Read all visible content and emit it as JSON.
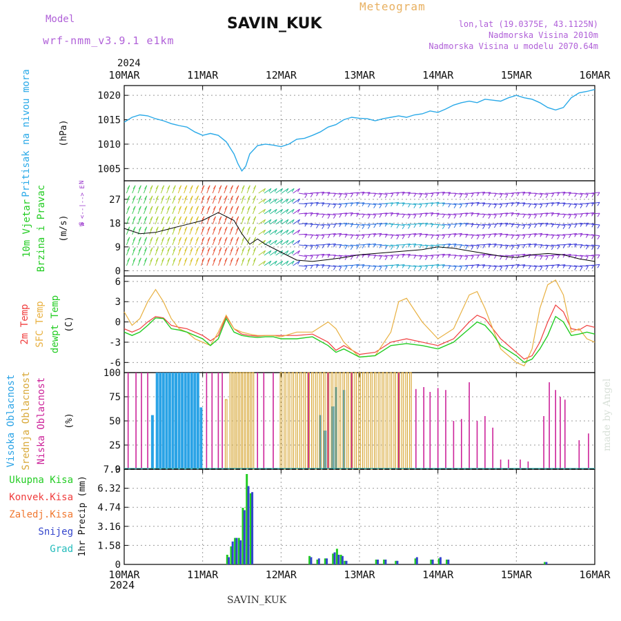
{
  "header": {
    "model_label": "Model",
    "model_name": "wrf-nmm_v3.9.1 e1km",
    "station": "SAVIN_KUK",
    "product": "Meteogram",
    "lonlat": "lon,lat (19.0375E, 43.1125N)",
    "elevation": "Nadmorska Visina 2010m",
    "model_elevation": "Nadmorska Visina u modelu 2070.64m",
    "year_top": "2024",
    "year_bottom": "2024",
    "footer_station": "SAVIN_KUK",
    "credit": "made by Angel"
  },
  "colors": {
    "pressure": "#29a9e8",
    "temp_2m": "#f03c3c",
    "temp_sfc": "#e8b040",
    "dewpoint": "#22cc22",
    "cloud_high": "#2aa3e6",
    "cloud_mid": "#d8a838",
    "cloud_low": "#cc2299",
    "wind_label": "#22cc22",
    "wind_axis": "#9933cc",
    "precip_total": "#22cc22",
    "precip_conv": "#f03c3c",
    "precip_frozen": "#f07830",
    "precip_snow": "#3344cc",
    "precip_hail": "#22bbbb"
  },
  "chart_data": [
    {
      "type": "line",
      "panel": "pressure",
      "ylabel_lines": [
        "Pritisak na nivou mora"
      ],
      "unit": "(hPa)",
      "x_categories": [
        "10MAR",
        "11MAR",
        "12MAR",
        "13MAR",
        "14MAR",
        "15MAR",
        "16MAR"
      ],
      "ylim": [
        1002.5,
        1022
      ],
      "yticks": [
        1005,
        1010,
        1015,
        1020
      ],
      "grid": true,
      "series": [
        {
          "x": [
            0,
            0.1,
            0.2,
            0.3,
            0.4,
            0.5,
            0.6,
            0.7,
            0.8,
            0.9,
            1.0,
            1.1,
            1.2,
            1.3,
            1.4,
            1.45,
            1.5,
            1.55,
            1.6,
            1.7,
            1.8,
            1.9,
            2.0,
            2.1,
            2.2,
            2.3,
            2.4,
            2.5,
            2.6,
            2.7,
            2.8,
            2.9,
            3.0,
            3.1,
            3.2,
            3.3,
            3.4,
            3.5,
            3.6,
            3.7,
            3.8,
            3.9,
            4.0,
            4.1,
            4.2,
            4.3,
            4.4,
            4.5,
            4.6,
            4.7,
            4.8,
            4.9,
            5.0,
            5.1,
            5.2,
            5.3,
            5.4,
            5.5,
            5.6,
            5.7,
            5.8,
            5.9,
            6.0
          ],
          "values": [
            1014.5,
            1015.5,
            1016,
            1015.8,
            1015.2,
            1014.8,
            1014.2,
            1013.8,
            1013.5,
            1012.5,
            1011.8,
            1012.2,
            1011.8,
            1010.5,
            1008,
            1006,
            1004.5,
            1005.5,
            1008,
            1009.7,
            1010,
            1009.8,
            1009.5,
            1010,
            1011,
            1011.2,
            1011.8,
            1012.5,
            1013.5,
            1014,
            1015,
            1015.5,
            1015.3,
            1015.2,
            1014.8,
            1015.2,
            1015.5,
            1015.8,
            1015.5,
            1016,
            1016.2,
            1016.8,
            1016.5,
            1017.2,
            1018,
            1018.5,
            1018.8,
            1018.5,
            1019.2,
            1019,
            1018.8,
            1019.5,
            1020,
            1019.5,
            1019.2,
            1018.5,
            1017.5,
            1017,
            1017.5,
            1019.5,
            1020.5,
            1020.8,
            1021.2
          ]
        }
      ]
    },
    {
      "type": "line",
      "panel": "wind",
      "ylabel_lines": [
        "10m Vjetar",
        "Brzina i Pravac"
      ],
      "unit": "(m/s)",
      "direction_key": [
        "N",
        "W <--|--> E",
        "S"
      ],
      "ylim": [
        -2,
        34
      ],
      "yticks": [
        0,
        9,
        18,
        27
      ],
      "grid": true,
      "series": [
        {
          "x": [
            0,
            0.2,
            0.4,
            0.6,
            0.8,
            1.0,
            1.2,
            1.4,
            1.5,
            1.6,
            1.7,
            1.8,
            2.0,
            2.2,
            2.4,
            2.6,
            2.8,
            3.0,
            3.2,
            3.4,
            3.6,
            3.8,
            4.0,
            4.2,
            4.4,
            4.6,
            4.8,
            5.0,
            5.2,
            5.4,
            5.6,
            5.8,
            6.0
          ],
          "values": [
            16,
            14,
            14.5,
            16,
            17.5,
            19,
            22,
            19,
            14,
            10,
            12,
            10,
            7,
            4,
            3.5,
            4.2,
            5,
            6,
            6.5,
            7,
            7.5,
            8,
            9,
            8.5,
            7.5,
            6.5,
            5.5,
            5,
            6,
            6.5,
            6,
            4.5,
            3.5
          ]
        }
      ]
    },
    {
      "type": "line",
      "panel": "temperature",
      "ylabel_lines": [
        "2m Temp",
        "SFC Temp",
        "dewpt Temp"
      ],
      "unit": "(C)",
      "ylim": [
        -7.5,
        6.8
      ],
      "yticks": [
        -6,
        -3,
        0,
        3,
        6
      ],
      "grid": true,
      "series": [
        {
          "name": "2m Temp",
          "x": [
            0,
            0.1,
            0.2,
            0.3,
            0.4,
            0.5,
            0.6,
            0.7,
            0.8,
            0.9,
            1.0,
            1.1,
            1.2,
            1.3,
            1.4,
            1.5,
            1.6,
            1.7,
            1.8,
            1.9,
            2.0,
            2.2,
            2.4,
            2.6,
            2.7,
            2.8,
            3.0,
            3.2,
            3.4,
            3.6,
            3.8,
            4.0,
            4.2,
            4.4,
            4.5,
            4.6,
            4.7,
            4.8,
            5.0,
            5.1,
            5.2,
            5.3,
            5.4,
            5.5,
            5.6,
            5.7,
            5.8,
            5.9,
            6.0
          ],
          "values": [
            -1,
            -1.5,
            -1,
            0,
            0.8,
            0.6,
            -0.5,
            -0.8,
            -1,
            -1.5,
            -2,
            -2.8,
            -2,
            0.8,
            -1,
            -1.8,
            -2,
            -2.1,
            -2,
            -2,
            -2,
            -2,
            -1.8,
            -3,
            -4.2,
            -3.5,
            -4.8,
            -4.5,
            -3,
            -2.5,
            -3,
            -3.5,
            -2.5,
            0,
            1,
            0.5,
            -1,
            -2.5,
            -4.5,
            -5.5,
            -5,
            -3,
            0,
            2.5,
            1.5,
            -1,
            -1.2,
            -0.5,
            -0.8
          ]
        },
        {
          "name": "SFC Temp",
          "x": [
            0,
            0.1,
            0.2,
            0.3,
            0.4,
            0.5,
            0.6,
            0.7,
            0.8,
            0.9,
            1.0,
            1.1,
            1.2,
            1.3,
            1.4,
            1.5,
            1.6,
            1.7,
            1.8,
            1.9,
            2.0,
            2.2,
            2.4,
            2.6,
            2.7,
            2.8,
            3.0,
            3.2,
            3.4,
            3.5,
            3.6,
            3.8,
            4.0,
            4.2,
            4.4,
            4.5,
            4.6,
            4.7,
            4.8,
            5.0,
            5.1,
            5.2,
            5.3,
            5.4,
            5.5,
            5.6,
            5.7,
            5.8,
            5.9,
            6.0
          ],
          "values": [
            1.5,
            -0.5,
            0.5,
            3,
            4.8,
            3,
            0.5,
            -1,
            -1.5,
            -2.5,
            -3,
            -3.5,
            -1.5,
            1,
            -1,
            -1.5,
            -1.8,
            -2,
            -2,
            -2,
            -2.2,
            -1.5,
            -1.5,
            0,
            -1,
            -3,
            -5.2,
            -5,
            -1.5,
            3,
            3.5,
            0,
            -2.5,
            -1,
            4,
            4.5,
            2,
            -1,
            -4,
            -6,
            -6.5,
            -4,
            2,
            5.5,
            6.2,
            4,
            -1.5,
            -1,
            -2.5,
            -3
          ]
        },
        {
          "name": "dewpt Temp",
          "x": [
            0,
            0.1,
            0.2,
            0.3,
            0.4,
            0.5,
            0.6,
            0.7,
            0.8,
            0.9,
            1.0,
            1.1,
            1.2,
            1.3,
            1.4,
            1.5,
            1.6,
            1.7,
            1.8,
            1.9,
            2.0,
            2.2,
            2.4,
            2.6,
            2.7,
            2.8,
            3.0,
            3.2,
            3.4,
            3.6,
            3.8,
            4.0,
            4.2,
            4.4,
            4.5,
            4.6,
            4.7,
            4.8,
            5.0,
            5.1,
            5.2,
            5.3,
            5.4,
            5.5,
            5.6,
            5.7,
            5.8,
            5.9,
            6.0
          ],
          "values": [
            -1.5,
            -2,
            -1.5,
            -0.5,
            0.6,
            0.5,
            -1,
            -1.2,
            -1.5,
            -2,
            -2.5,
            -3.5,
            -2.5,
            0.5,
            -1.5,
            -2,
            -2.2,
            -2.3,
            -2.2,
            -2.2,
            -2.5,
            -2.5,
            -2.2,
            -3.5,
            -4.5,
            -4,
            -5.2,
            -5,
            -3.5,
            -3.2,
            -3.5,
            -4,
            -3,
            -1,
            0,
            -0.5,
            -1.8,
            -3.5,
            -5,
            -6,
            -5.5,
            -4,
            -2,
            0.8,
            0,
            -2,
            -1.8,
            -1.5,
            -1.8
          ]
        }
      ]
    },
    {
      "type": "bar",
      "panel": "clouds",
      "ylabel_lines": [
        "Visoka Oblacnost",
        "Srednja Oblacnost",
        "Niska Oblacnost"
      ],
      "unit": "(%)",
      "ylim": [
        0,
        100
      ],
      "yticks": [
        0,
        25,
        50,
        75,
        100
      ],
      "grid": true,
      "series": [
        {
          "name": "Visoka Oblacnost",
          "x": [
            0.36,
            0.42,
            0.46,
            0.5,
            0.54,
            0.58,
            0.62,
            0.66,
            0.7,
            0.74,
            0.78,
            0.82,
            0.86,
            0.9,
            0.94,
            0.98,
            2.5,
            2.56,
            2.66,
            2.7,
            2.8
          ],
          "values": [
            56,
            100,
            100,
            100,
            100,
            100,
            100,
            100,
            100,
            100,
            100,
            100,
            100,
            100,
            100,
            64,
            56,
            40,
            65,
            85,
            82
          ]
        },
        {
          "name": "Srednja Oblacnost",
          "x": [
            1.3,
            1.36,
            1.4,
            1.44,
            1.48,
            1.52,
            1.56,
            1.6,
            1.64,
            2.0,
            2.05,
            2.1,
            2.15,
            2.2,
            2.25,
            2.3,
            2.35,
            2.4,
            2.45,
            2.5,
            2.55,
            2.6,
            2.65,
            2.7,
            2.75,
            2.8,
            2.85,
            2.9,
            2.95,
            3.0,
            3.05,
            3.1,
            3.15,
            3.2,
            3.25,
            3.3,
            3.35,
            3.4,
            3.45,
            3.5,
            3.55,
            3.6,
            3.65
          ],
          "values": [
            72,
            100,
            100,
            100,
            100,
            100,
            100,
            100,
            100,
            100,
            100,
            100,
            100,
            100,
            100,
            100,
            100,
            100,
            100,
            100,
            100,
            100,
            100,
            100,
            100,
            100,
            100,
            100,
            100,
            100,
            100,
            100,
            100,
            100,
            100,
            100,
            100,
            100,
            100,
            100,
            100,
            100,
            100
          ]
        },
        {
          "name": "Niska Oblacnost",
          "x": [
            0.05,
            0.15,
            0.22,
            0.3,
            1.05,
            1.12,
            1.2,
            1.25,
            1.7,
            1.78,
            1.9,
            2.35,
            2.6,
            2.9,
            3.5,
            3.72,
            3.82,
            3.9,
            4.0,
            4.1,
            4.2,
            4.3,
            4.4,
            4.5,
            4.6,
            4.7,
            4.8,
            4.9,
            5.05,
            5.15,
            5.35,
            5.42,
            5.5,
            5.56,
            5.62,
            5.8,
            5.92
          ],
          "values": [
            100,
            100,
            100,
            100,
            100,
            100,
            100,
            100,
            100,
            100,
            100,
            100,
            100,
            100,
            100,
            83,
            85,
            80,
            84,
            82,
            50,
            52,
            90,
            50,
            55,
            43,
            10,
            10,
            10,
            8,
            55,
            90,
            82,
            75,
            72,
            30,
            37
          ]
        }
      ]
    },
    {
      "type": "bar",
      "panel": "precipitation",
      "ylabel_lines": [
        "Ukupna Kisa",
        "Konvek.Kisa",
        "Zaledj.Kisa",
        "Snijeg",
        "Grad"
      ],
      "ylabel": "1hr Precip (mm)",
      "ylim": [
        0,
        7.9
      ],
      "yticks": [
        "0",
        "1.58",
        "3.16",
        "4.74",
        "6.32",
        "7.9"
      ],
      "grid": true,
      "x_categories": [
        "10MAR",
        "11MAR",
        "12MAR",
        "13MAR",
        "14MAR",
        "15MAR",
        "16MAR"
      ],
      "series": [
        {
          "name": "Ukupna Kisa",
          "x": [
            1.3,
            1.35,
            1.4,
            1.45,
            1.5,
            1.55,
            1.6,
            2.35,
            2.45,
            2.55,
            2.65,
            2.7,
            2.75,
            2.8,
            3.2,
            3.3,
            3.45,
            3.7,
            3.9,
            4.0,
            4.1,
            5.35
          ],
          "values": [
            0.8,
            1.5,
            2.2,
            2.2,
            4.7,
            7.5,
            5.9,
            0.7,
            0.4,
            0.5,
            0.9,
            1.3,
            0.8,
            0.3,
            0.4,
            0.4,
            0.3,
            0.5,
            0.4,
            0.5,
            0.4,
            0.2
          ]
        },
        {
          "name": "Snijeg",
          "x": [
            1.32,
            1.37,
            1.42,
            1.47,
            1.52,
            1.57,
            1.62,
            2.37,
            2.47,
            2.57,
            2.67,
            2.72,
            2.77,
            2.82,
            3.22,
            3.32,
            3.47,
            3.72,
            3.92,
            4.02,
            4.12,
            5.37
          ],
          "values": [
            0.6,
            1.9,
            2.2,
            2.0,
            4.5,
            6.5,
            6.0,
            0.6,
            0.5,
            0.5,
            1.0,
            0.8,
            0.7,
            0.3,
            0.4,
            0.4,
            0.3,
            0.6,
            0.4,
            0.6,
            0.4,
            0.2
          ]
        }
      ]
    }
  ]
}
